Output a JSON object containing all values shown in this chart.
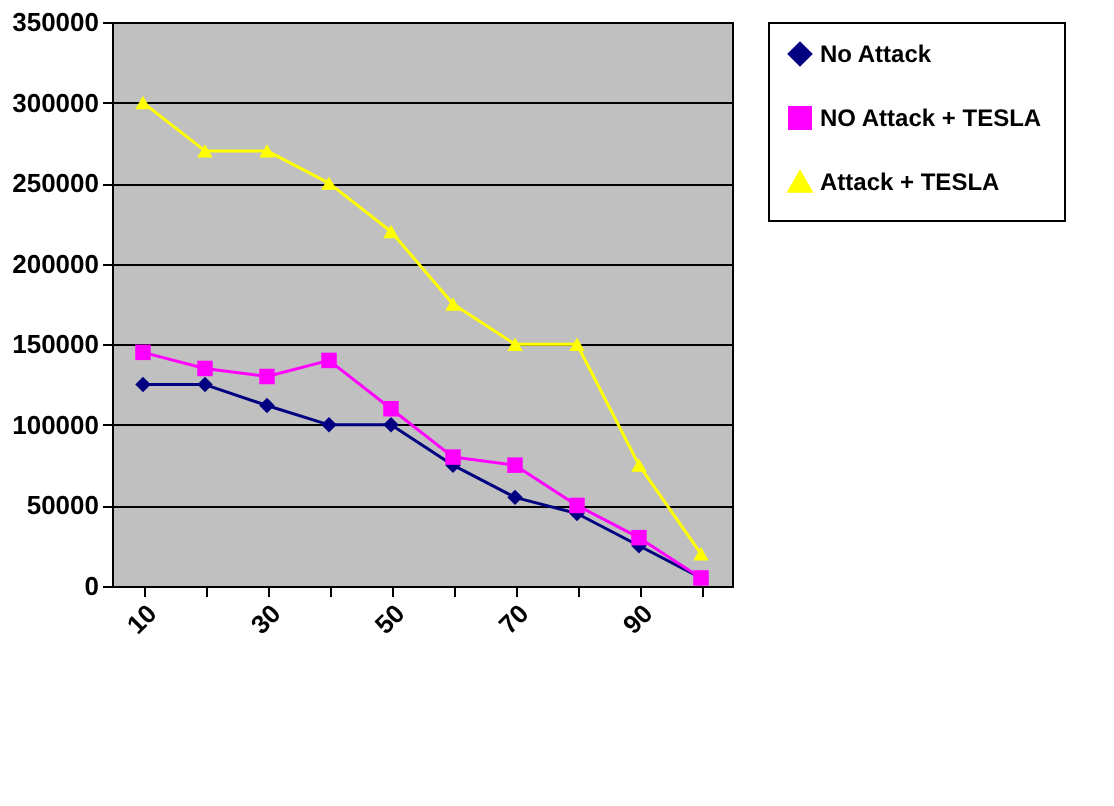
{
  "chart_data": {
    "type": "line",
    "categories": [
      "10",
      null,
      "30",
      null,
      "50",
      null,
      "70",
      null,
      "90",
      null
    ],
    "series": [
      {
        "name": "No Attack",
        "color": "#000080",
        "marker": "diamond",
        "values": [
          125000,
          125000,
          112000,
          100000,
          100000,
          75000,
          55000,
          45000,
          25000,
          5000
        ]
      },
      {
        "name": "NO Attack + TESLA",
        "color": "#ff00ff",
        "marker": "square",
        "values": [
          145000,
          135000,
          130000,
          140000,
          110000,
          80000,
          75000,
          50000,
          30000,
          5000
        ]
      },
      {
        "name": "Attack + TESLA",
        "color": "#ffff00",
        "marker": "triangle",
        "values": [
          300000,
          270000,
          270000,
          250000,
          220000,
          175000,
          150000,
          150000,
          75000,
          20000
        ]
      }
    ],
    "ylim": [
      0,
      350000
    ],
    "yticks": [
      0,
      50000,
      100000,
      150000,
      200000,
      250000,
      300000,
      350000
    ],
    "grid": "y",
    "legend": "right",
    "line_style": "solid"
  }
}
